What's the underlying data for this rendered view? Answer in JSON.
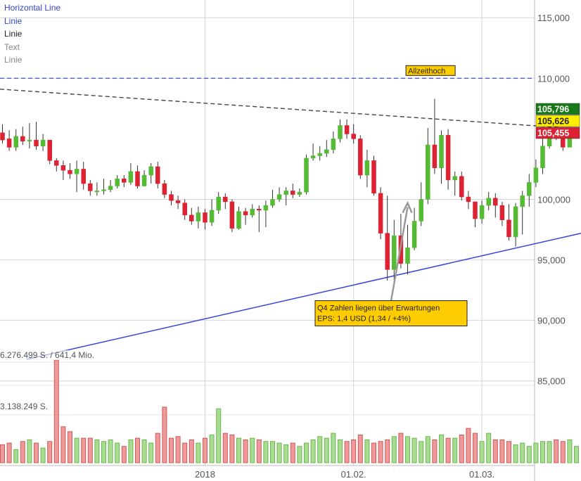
{
  "legend": {
    "items": [
      {
        "label": "Horizontal Line",
        "color": "#3344cc"
      },
      {
        "label": "Linie",
        "color": "#3344cc"
      },
      {
        "label": "Linie",
        "color": "#222222"
      },
      {
        "label": "Text",
        "color": "#888888"
      },
      {
        "label": "Linie",
        "color": "#888888"
      }
    ]
  },
  "volume_labels": {
    "max": "6.276.499 S. / 641,4 Mio.",
    "mid": "3.138.249 S."
  },
  "colors": {
    "up": "#55bb33",
    "down": "#dd2233",
    "grid": "#d4d4d4",
    "support_line": "#3344dd",
    "resistance_line": "#444444",
    "horizontal_line": "#3344cc",
    "annotation_bg": "#ffcc00",
    "badge_high": "#1a7a1a",
    "badge_last": "#ffee00",
    "badge_low": "#dd2233"
  },
  "chart_data": {
    "type": "candlestick",
    "y_axis": {
      "ticks": [
        "115,000",
        "110,000",
        "100,000",
        "95,000",
        "90,000",
        "85,000"
      ],
      "tick_values": [
        115,
        110,
        100,
        95,
        90,
        85
      ],
      "range": [
        81.5,
        116
      ]
    },
    "x_axis": {
      "tick_labels": [
        "2018",
        "01.02.",
        "01.03."
      ],
      "tick_indices": [
        30,
        52,
        71
      ]
    },
    "price_badges": [
      {
        "label": "105,796",
        "value": 105.796,
        "kind": "high"
      },
      {
        "label": "105,626",
        "value": 105.626,
        "kind": "last"
      },
      {
        "label": "105,455",
        "value": 105.455,
        "kind": "low"
      }
    ],
    "horizontal_line": {
      "value": 110.0
    },
    "annotations": [
      {
        "lines": [
          "Allzeithoch"
        ],
        "candle_index": 61,
        "value": 110.0
      },
      {
        "lines": [
          "Q4 Zahlen liegen über Erwartungen",
          "EPS: 1,4 USD (1,34 / +4%)"
        ],
        "candle_index": 60,
        "value": 91.4
      }
    ],
    "candles": [
      [
        105.5,
        104.9,
        106.2,
        104.6
      ],
      [
        105.0,
        104.3,
        105.7,
        104.0
      ],
      [
        104.3,
        105.2,
        105.8,
        104.0
      ],
      [
        105.2,
        104.8,
        106.0,
        104.5
      ],
      [
        104.8,
        104.9,
        106.3,
        104.2
      ],
      [
        104.9,
        104.4,
        106.4,
        104.1
      ],
      [
        104.4,
        104.9,
        105.4,
        104.0
      ],
      [
        104.9,
        103.2,
        104.9,
        102.9
      ],
      [
        103.2,
        102.8,
        103.4,
        102.3
      ],
      [
        102.8,
        102.4,
        103.2,
        101.6
      ],
      [
        102.4,
        102.1,
        103.0,
        101.7
      ],
      [
        102.1,
        102.5,
        103.2,
        100.6
      ],
      [
        102.5,
        101.3,
        103.1,
        100.8
      ],
      [
        101.3,
        100.7,
        101.6,
        100.3
      ],
      [
        100.7,
        100.7,
        101.4,
        100.3
      ],
      [
        100.7,
        100.8,
        101.7,
        100.4
      ],
      [
        100.8,
        101.1,
        101.6,
        100.6
      ],
      [
        101.1,
        101.7,
        102.0,
        100.9
      ],
      [
        101.7,
        101.4,
        102.0,
        101.0
      ],
      [
        101.4,
        102.3,
        103.0,
        101.2
      ],
      [
        102.3,
        101.1,
        102.8,
        100.9
      ],
      [
        101.1,
        102.0,
        102.4,
        101.2
      ],
      [
        102.0,
        102.7,
        103.0,
        101.3
      ],
      [
        102.7,
        101.3,
        103.1,
        100.9
      ],
      [
        101.3,
        100.4,
        101.6,
        100.1
      ],
      [
        100.4,
        99.9,
        100.7,
        99.5
      ],
      [
        99.9,
        99.7,
        100.3,
        99.2
      ],
      [
        99.7,
        98.7,
        100.0,
        98.3
      ],
      [
        98.7,
        98.2,
        99.3,
        97.9
      ],
      [
        98.2,
        98.9,
        99.4,
        97.6
      ],
      [
        98.9,
        98.1,
        99.2,
        97.5
      ],
      [
        98.1,
        99.1,
        100.0,
        97.8
      ],
      [
        99.1,
        100.2,
        100.6,
        98.8
      ],
      [
        100.2,
        99.8,
        100.5,
        99.2
      ],
      [
        99.8,
        97.6,
        100.0,
        97.3
      ],
      [
        97.6,
        99.0,
        99.4,
        97.5
      ],
      [
        99.0,
        98.7,
        99.3,
        97.9
      ],
      [
        98.7,
        99.2,
        99.6,
        98.5
      ],
      [
        99.2,
        99.1,
        99.5,
        97.3
      ],
      [
        99.1,
        99.5,
        99.9,
        97.7
      ],
      [
        99.5,
        100.0,
        100.8,
        99.3
      ],
      [
        100.0,
        100.4,
        101.0,
        99.8
      ],
      [
        100.4,
        100.7,
        101.0,
        99.5
      ],
      [
        100.7,
        100.4,
        101.3,
        100.1
      ],
      [
        100.4,
        100.6,
        100.9,
        100.2
      ],
      [
        100.6,
        103.4,
        103.7,
        100.4
      ],
      [
        103.4,
        103.6,
        104.6,
        103.2
      ],
      [
        103.6,
        103.8,
        104.4,
        103.2
      ],
      [
        103.8,
        104.1,
        104.9,
        103.5
      ],
      [
        104.1,
        105.0,
        105.6,
        103.8
      ],
      [
        105.0,
        106.1,
        106.6,
        104.7
      ],
      [
        106.1,
        105.4,
        106.6,
        105.0
      ],
      [
        105.4,
        105.0,
        106.2,
        104.6
      ],
      [
        105.0,
        102.0,
        105.3,
        101.7
      ],
      [
        102.0,
        103.2,
        104.1,
        101.0
      ],
      [
        103.2,
        100.5,
        103.6,
        100.3
      ],
      [
        100.5,
        97.2,
        101.0,
        96.7
      ],
      [
        97.2,
        94.2,
        100.3,
        93.3
      ],
      [
        94.2,
        97.0,
        98.3,
        93.3
      ],
      [
        97.0,
        94.7,
        98.8,
        94.3
      ],
      [
        94.7,
        96.0,
        97.9,
        93.8
      ],
      [
        96.0,
        98.2,
        99.3,
        95.8
      ],
      [
        98.2,
        100.0,
        101.4,
        97.8
      ],
      [
        100.0,
        104.5,
        105.9,
        99.6
      ],
      [
        104.5,
        102.6,
        108.3,
        102.1
      ],
      [
        102.6,
        105.3,
        105.7,
        101.3
      ],
      [
        105.3,
        101.6,
        105.8,
        100.8
      ],
      [
        101.6,
        101.9,
        102.3,
        100.3
      ],
      [
        101.9,
        100.2,
        102.3,
        99.9
      ],
      [
        100.2,
        99.8,
        100.7,
        99.2
      ],
      [
        99.8,
        98.4,
        99.8,
        97.7
      ],
      [
        98.4,
        99.5,
        99.9,
        98.0
      ],
      [
        99.5,
        100.1,
        100.6,
        99.1
      ],
      [
        100.1,
        99.5,
        100.5,
        98.5
      ],
      [
        99.5,
        98.3,
        99.8,
        97.8
      ],
      [
        98.3,
        96.9,
        99.6,
        96.6
      ],
      [
        96.9,
        99.4,
        99.7,
        96.1
      ],
      [
        99.4,
        100.3,
        100.7,
        97.1
      ],
      [
        100.3,
        101.4,
        102.1,
        99.4
      ],
      [
        101.4,
        102.6,
        103.3,
        101.0
      ],
      [
        102.6,
        104.4,
        105.0,
        102.1
      ],
      [
        104.4,
        105.6,
        106.4,
        104.2
      ],
      [
        105.6,
        105.3,
        106.3,
        104.9
      ],
      [
        105.3,
        104.3,
        105.8,
        104.0
      ],
      [
        104.3,
        105.2,
        106.0,
        104.4
      ],
      [
        105.2,
        105.6,
        105.9,
        105.0
      ]
    ],
    "volume_axis": {
      "max": 6.276499
    },
    "volume": [
      1.1,
      1.2,
      0.8,
      1.3,
      1.4,
      1.2,
      0.9,
      1.3,
      6.276499,
      2.2,
      1.9,
      1.5,
      1.5,
      1.5,
      1.4,
      1.3,
      1.4,
      1.2,
      1.0,
      1.4,
      1.5,
      1.4,
      1.2,
      1.8,
      3.4,
      1.5,
      1.6,
      1.2,
      1.4,
      1.2,
      1.5,
      1.7,
      3.3,
      1.8,
      1.7,
      1.5,
      1.4,
      1.5,
      1.4,
      1.3,
      1.3,
      1.2,
      1.1,
      1.2,
      1.0,
      1.2,
      1.4,
      1.6,
      1.5,
      1.8,
      1.4,
      1.3,
      1.4,
      1.7,
      1.4,
      1.2,
      1.3,
      1.4,
      1.6,
      1.8,
      1.6,
      1.5,
      1.3,
      1.6,
      1.4,
      1.7,
      1.5,
      1.5,
      1.7,
      2.1,
      1.8,
      1.3,
      1.8,
      1.4,
      1.4,
      1.3,
      1.1,
      1.2,
      1.0,
      1.2,
      1.3,
      1.3,
      1.4,
      1.3,
      1.4,
      1.0
    ]
  }
}
